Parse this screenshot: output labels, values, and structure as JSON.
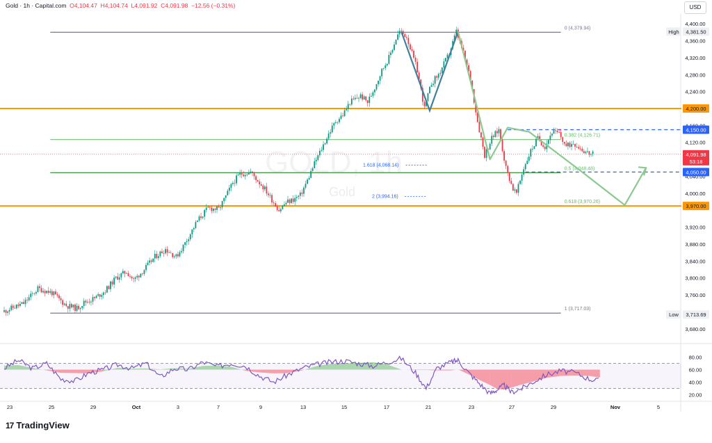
{
  "header": {
    "symbol": "Gold · 1h · Capital.com",
    "open": "O4,104.47",
    "high": "H4,104.74",
    "low": "L4,091.92",
    "close": "C4,091.98",
    "change": "−12.56 (−0.31%)"
  },
  "currency": "USD",
  "brand": "TradingView",
  "watermark": {
    "title": "GOLD, 1h",
    "subtitle": "Gold"
  },
  "colors": {
    "up": "#089981",
    "down": "#f23645",
    "orange": "#ff9800",
    "green_line": "#4caf50",
    "fib_green": "#81c784",
    "blue_dash": "#2962ff",
    "teal_pattern": "#3f7f9f",
    "rsi_line": "#7e57c2"
  },
  "chart_data": [
    {
      "type": "line",
      "subtype": "candlestick",
      "ylim": [
        3655,
        4420
      ],
      "y_ticks": [
        "4,400.00",
        "4,360.00",
        "4,320.00",
        "4,280.00",
        "4,240.00",
        "4,160.00",
        "4,120.00",
        "4,040.00",
        "4,000.00",
        "3,920.00",
        "3,880.00",
        "3,840.00",
        "3,800.00",
        "3,760.00",
        "3,720.00",
        "3,680.00"
      ],
      "y_tick_values": [
        4400,
        4360,
        4320,
        4280,
        4240,
        4160,
        4120,
        4040,
        4000,
        3920,
        3880,
        3840,
        3800,
        3760,
        3720,
        3680
      ],
      "x_ticks": [
        "23",
        "25",
        "29",
        "Oct",
        "3",
        "7",
        "9",
        "13",
        "15",
        "17",
        "21",
        "23",
        "27",
        "29",
        "Nov",
        "5"
      ],
      "price_path": [
        [
          0,
          3720
        ],
        [
          6,
          3740
        ],
        [
          10,
          3775
        ],
        [
          14,
          3765
        ],
        [
          18,
          3735
        ],
        [
          21,
          3728
        ],
        [
          23,
          3742
        ],
        [
          26,
          3752
        ],
        [
          29,
          3770
        ],
        [
          32,
          3800
        ],
        [
          35,
          3815
        ],
        [
          37,
          3795
        ],
        [
          40,
          3820
        ],
        [
          43,
          3850
        ],
        [
          46,
          3868
        ],
        [
          49,
          3850
        ],
        [
          51,
          3875
        ],
        [
          53,
          3905
        ],
        [
          55,
          3935
        ],
        [
          58,
          3965
        ],
        [
          61,
          3962
        ],
        [
          63,
          3992
        ],
        [
          65,
          4025
        ],
        [
          67,
          4045
        ],
        [
          70,
          4050
        ],
        [
          72,
          4030
        ],
        [
          74,
          4010
        ],
        [
          76,
          3985
        ],
        [
          78,
          3960
        ],
        [
          80,
          3978
        ],
        [
          82,
          3985
        ],
        [
          84,
          3995
        ],
        [
          86,
          4030
        ],
        [
          88,
          4070
        ],
        [
          90,
          4105
        ],
        [
          92,
          4140
        ],
        [
          94,
          4170
        ],
        [
          96,
          4185
        ],
        [
          98,
          4215
        ],
        [
          101,
          4230
        ],
        [
          103,
          4215
        ],
        [
          105,
          4250
        ],
        [
          107,
          4290
        ],
        [
          109,
          4320
        ],
        [
          111,
          4365
        ],
        [
          112,
          4381.5
        ],
        [
          114,
          4370
        ],
        [
          117,
          4290
        ],
        [
          119,
          4200
        ],
        [
          121,
          4260
        ],
        [
          123,
          4280
        ],
        [
          126,
          4330
        ],
        [
          128,
          4381.5
        ],
        [
          130,
          4330
        ],
        [
          132,
          4270
        ],
        [
          134,
          4170
        ],
        [
          136,
          4090
        ],
        [
          138,
          4130
        ],
        [
          140,
          4150
        ],
        [
          142,
          4060
        ],
        [
          144,
          4010
        ],
        [
          145,
          4000
        ],
        [
          147,
          4060
        ],
        [
          149,
          4100
        ],
        [
          151,
          4130
        ],
        [
          153,
          4110
        ],
        [
          155,
          4145
        ],
        [
          157,
          4140
        ],
        [
          159,
          4110
        ],
        [
          161,
          4120
        ],
        [
          164,
          4100
        ],
        [
          166,
          4092
        ]
      ],
      "current_price": "4,091.98",
      "countdown": "53:18",
      "levels": [
        {
          "price": 4200,
          "label": "4,200.00",
          "style": "orange"
        },
        {
          "price": 3970,
          "label": "3,970.00",
          "style": "orange"
        },
        {
          "price": 4150,
          "label": "4,150.00",
          "style": "blue-dash"
        },
        {
          "price": 4050,
          "label": "4,050.00",
          "style": "blue-dash"
        }
      ],
      "high_marker": {
        "tag": "High",
        "label": "4,381.50",
        "price": 4381.5
      },
      "low_marker": {
        "tag": "Low",
        "label": "3,713.69",
        "price": 3713.69
      },
      "fib_retracement": [
        {
          "text": "0 (4,379.94)",
          "price": 4379.94
        },
        {
          "text": "0.382 (4,126.71)",
          "price": 4126.71
        },
        {
          "text": "0.5 (4,048.48)",
          "price": 4048.48
        },
        {
          "text": "0.618 (3,970.26)",
          "price": 3970.26
        },
        {
          "text": "1 (3,717.03)",
          "price": 3717.03
        }
      ],
      "fib_extension": [
        {
          "text": "1.618 (4,068.14)",
          "price": 4068.14
        },
        {
          "text": "2 (3,994.16)",
          "price": 3994.16
        }
      ],
      "double_top_pattern": [
        [
          112,
          4381.5
        ],
        [
          120,
          4195
        ],
        [
          128,
          4381.5
        ]
      ],
      "projection_path": [
        [
          128,
          4381.5
        ],
        [
          137,
          4080
        ],
        [
          142,
          4155
        ],
        [
          148,
          4145
        ],
        [
          163,
          4050
        ],
        [
          175,
          3972
        ],
        [
          181,
          4060
        ]
      ]
    },
    {
      "type": "line",
      "subtype": "rsi",
      "ylim": [
        15,
        95
      ],
      "y_ticks": [
        "80.00",
        "60.00",
        "40.00",
        "20.00"
      ],
      "y_tick_values": [
        80,
        60,
        40,
        20
      ],
      "upper_band": 70,
      "lower_band": 30,
      "mid": 60,
      "path": [
        [
          0,
          62
        ],
        [
          4,
          75
        ],
        [
          8,
          62
        ],
        [
          12,
          70
        ],
        [
          16,
          45
        ],
        [
          20,
          42
        ],
        [
          24,
          55
        ],
        [
          28,
          60
        ],
        [
          32,
          68
        ],
        [
          36,
          62
        ],
        [
          40,
          70
        ],
        [
          44,
          48
        ],
        [
          48,
          62
        ],
        [
          52,
          60
        ],
        [
          56,
          72
        ],
        [
          60,
          65
        ],
        [
          64,
          70
        ],
        [
          68,
          66
        ],
        [
          72,
          50
        ],
        [
          76,
          40
        ],
        [
          80,
          52
        ],
        [
          84,
          62
        ],
        [
          88,
          68
        ],
        [
          92,
          72
        ],
        [
          96,
          74
        ],
        [
          100,
          70
        ],
        [
          104,
          66
        ],
        [
          108,
          72
        ],
        [
          112,
          78
        ],
        [
          116,
          55
        ],
        [
          119,
          30
        ],
        [
          122,
          62
        ],
        [
          126,
          72
        ],
        [
          128,
          75
        ],
        [
          131,
          55
        ],
        [
          134,
          38
        ],
        [
          137,
          22
        ],
        [
          139,
          28
        ],
        [
          141,
          35
        ],
        [
          143,
          24
        ],
        [
          146,
          30
        ],
        [
          149,
          40
        ],
        [
          153,
          52
        ],
        [
          157,
          58
        ],
        [
          161,
          55
        ],
        [
          165,
          45
        ],
        [
          168,
          42
        ]
      ]
    }
  ]
}
